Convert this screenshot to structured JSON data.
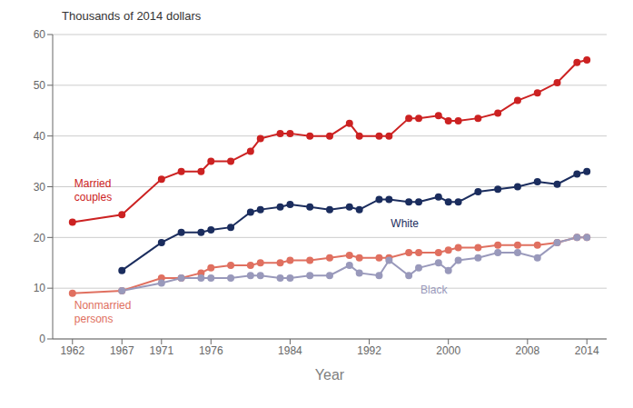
{
  "chart_data": {
    "type": "line",
    "title": "Thousands of 2014 dollars",
    "xlabel": "Year",
    "xlim": [
      1960,
      2016
    ],
    "xticks": [
      1962,
      1967,
      1971,
      1976,
      1984,
      1992,
      2000,
      2008,
      2014
    ],
    "ylim": [
      0,
      60
    ],
    "yticks": [
      0,
      10,
      20,
      30,
      40,
      50,
      60
    ],
    "grid": true,
    "marker": "circle",
    "series": [
      {
        "name": "Married\ncouples",
        "color": "#cc2222",
        "x": [
          1962,
          1967,
          1971,
          1973,
          1975,
          1976,
          1978,
          1980,
          1981,
          1983,
          1984,
          1986,
          1988,
          1990,
          1991,
          1993,
          1994,
          1996,
          1997,
          1999,
          2000,
          2001,
          2003,
          2005,
          2007,
          2009,
          2011,
          2013,
          2014
        ],
        "values": [
          23,
          24.5,
          31.5,
          33,
          33,
          35,
          35,
          37,
          39.5,
          40.5,
          40.5,
          40,
          40,
          42.5,
          40,
          40,
          40,
          43.5,
          43.5,
          44,
          43,
          43,
          43.5,
          44.5,
          47,
          48.5,
          50.5,
          54.5,
          55
        ]
      },
      {
        "name": "Nonmarried\npersons",
        "color": "#e07060",
        "x": [
          1962,
          1967,
          1971,
          1973,
          1975,
          1976,
          1978,
          1980,
          1981,
          1983,
          1984,
          1986,
          1988,
          1990,
          1991,
          1993,
          1994,
          1996,
          1997,
          1999,
          2000,
          2001,
          2003,
          2005,
          2007,
          2009,
          2011,
          2013,
          2014
        ],
        "values": [
          9,
          9.5,
          12,
          12,
          13,
          14,
          14.5,
          14.5,
          15,
          15,
          15.5,
          15.5,
          16,
          16.5,
          16,
          16,
          16,
          17,
          17,
          17,
          17.5,
          18,
          18,
          18.5,
          18.5,
          18.5,
          19,
          20,
          20
        ]
      },
      {
        "name": "White",
        "color": "#1b2d5e",
        "x": [
          1967,
          1971,
          1973,
          1975,
          1976,
          1978,
          1980,
          1981,
          1983,
          1984,
          1986,
          1988,
          1990,
          1991,
          1993,
          1994,
          1996,
          1997,
          1999,
          2000,
          2001,
          2003,
          2005,
          2007,
          2009,
          2011,
          2013,
          2014
        ],
        "values": [
          13.5,
          19,
          21,
          21,
          21.5,
          22,
          25,
          25.5,
          26,
          26.5,
          26,
          25.5,
          26,
          25.5,
          27.5,
          27.5,
          27,
          27,
          28,
          27,
          27,
          29,
          29.5,
          30,
          31,
          30.5,
          32.5,
          33
        ]
      },
      {
        "name": "Black",
        "color": "#9999bb",
        "x": [
          1967,
          1971,
          1973,
          1975,
          1976,
          1978,
          1980,
          1981,
          1983,
          1984,
          1986,
          1988,
          1990,
          1991,
          1993,
          1994,
          1996,
          1997,
          1999,
          2000,
          2001,
          2003,
          2005,
          2007,
          2009,
          2011,
          2013,
          2014
        ],
        "values": [
          9.5,
          11,
          12,
          12,
          12,
          12,
          12.5,
          12.5,
          12,
          12,
          12.5,
          12.5,
          14.5,
          13,
          12.5,
          15.5,
          12.5,
          14,
          15,
          13.5,
          15.5,
          16,
          17,
          17,
          16,
          19,
          20,
          20
        ]
      }
    ],
    "annotations": [
      {
        "text": "Married\ncouples",
        "x": 1962,
        "y": 26.5,
        "color": "#cc2222"
      },
      {
        "text": "Nonmarried\npersons",
        "x": 1962,
        "y": 8.5,
        "color": "#e07060"
      },
      {
        "text": "White",
        "x": 1994,
        "y": 24.5,
        "color": "#1b2d5e"
      },
      {
        "text": "Black",
        "x": 1997,
        "y": 11.5,
        "color": "#9999bb"
      }
    ]
  }
}
